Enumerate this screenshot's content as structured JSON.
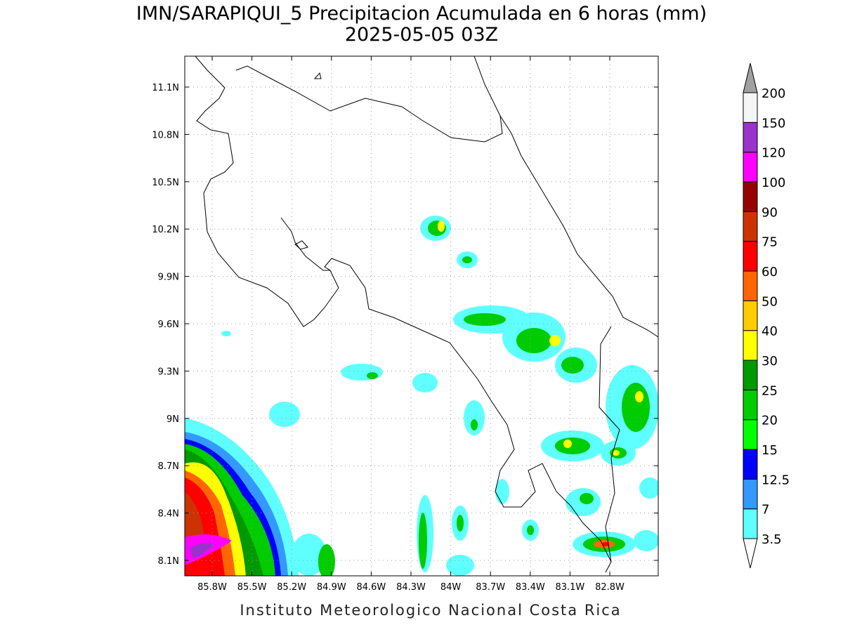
{
  "header": {
    "title": "IMN/SARAPIQUI_5 Precipitacion Acumulada en 6 horas (mm)",
    "subtitle": "2025-05-05 03Z"
  },
  "map": {
    "lat_labels": [
      "11.1N",
      "10.8N",
      "10.5N",
      "10.2N",
      "9.9N",
      "9.6N",
      "9.3N",
      "9N",
      "8.7N",
      "8.4N",
      "8.1N"
    ],
    "lon_labels": [
      "85.8W",
      "85.5W",
      "85.2W",
      "84.9W",
      "84.6W",
      "84.3W",
      "84W",
      "83.7W",
      "83.4W",
      "83.1W",
      "82.8W"
    ]
  },
  "colorbar": {
    "levels": [
      3.5,
      7,
      12.5,
      15,
      20,
      25,
      30,
      40,
      50,
      60,
      75,
      90,
      100,
      120,
      150,
      200
    ],
    "colors": [
      "#60ffff",
      "#3399ff",
      "#0000ff",
      "#00ff00",
      "#00cc00",
      "#009900",
      "#ffff00",
      "#ffcc00",
      "#ff6600",
      "#ff0000",
      "#cc3300",
      "#990000",
      "#ff00ff",
      "#9933cc",
      "#f5f5f5"
    ],
    "under_color": "#ffffff",
    "over_color": "#a0a0a0"
  },
  "footer": "Instituto Meteorologico Nacional Costa Rica"
}
